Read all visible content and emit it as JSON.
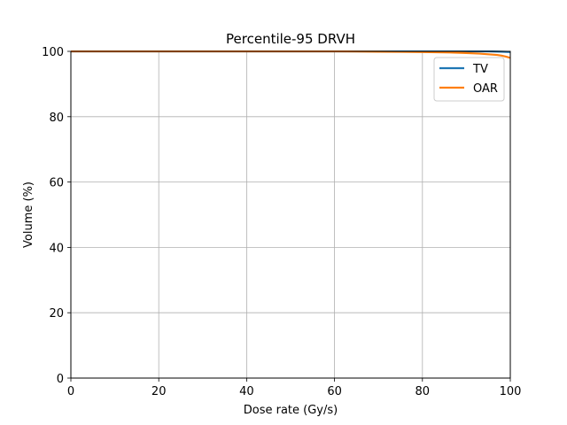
{
  "chart_data": {
    "type": "line",
    "title": "Percentile-95 DRVH",
    "xlabel": "Dose rate (Gy/s)",
    "ylabel": "Volume (%)",
    "xlim": [
      0,
      100
    ],
    "ylim": [
      0,
      100
    ],
    "xticks": [
      "0",
      "20",
      "40",
      "60",
      "80",
      "100"
    ],
    "yticks": [
      "0",
      "20",
      "40",
      "60",
      "80",
      "100"
    ],
    "grid": true,
    "legend_position": "top-right",
    "series": [
      {
        "name": "TV",
        "color": "#1f77b4",
        "x": [
          0,
          10,
          20,
          30,
          40,
          50,
          60,
          70,
          80,
          85,
          90,
          95,
          98,
          100
        ],
        "y": [
          100,
          100,
          100,
          100,
          100,
          100,
          100,
          100,
          100,
          100,
          100,
          100,
          99.9,
          99.8
        ]
      },
      {
        "name": "OAR",
        "color": "#ff7f0e",
        "x": [
          0,
          10,
          20,
          30,
          40,
          50,
          60,
          65,
          70,
          75,
          80,
          85,
          90,
          93,
          95,
          97,
          98,
          99,
          100
        ],
        "y": [
          100,
          100,
          100,
          100,
          100,
          100,
          100,
          99.95,
          99.9,
          99.85,
          99.8,
          99.7,
          99.5,
          99.3,
          99.1,
          98.9,
          98.7,
          98.4,
          98.0
        ]
      }
    ]
  }
}
